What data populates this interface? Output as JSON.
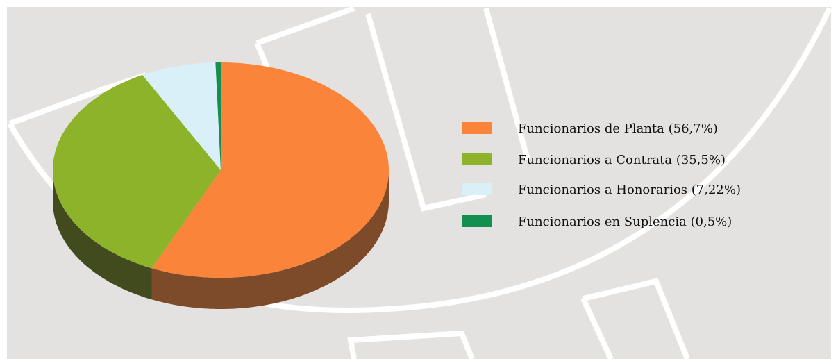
{
  "chart_data": {
    "type": "pie",
    "categories": [
      "Funcionarios de Planta (56,7%)",
      "Funcionarios a Contrata (35,5%)",
      "Funcionarios a  Honorarios (7,22%)",
      "Funcionarios  en Suplencia (0,5%)"
    ],
    "values": [
      56.7,
      35.5,
      7.22,
      0.5
    ],
    "colors": [
      "#f9843a",
      "#8db32a",
      "#d9f0f9",
      "#13904f"
    ],
    "side_colors": [
      "#7d4b29",
      "#414b1e",
      "#8a9aa0",
      "#0c4a2a"
    ],
    "legend": "right"
  }
}
